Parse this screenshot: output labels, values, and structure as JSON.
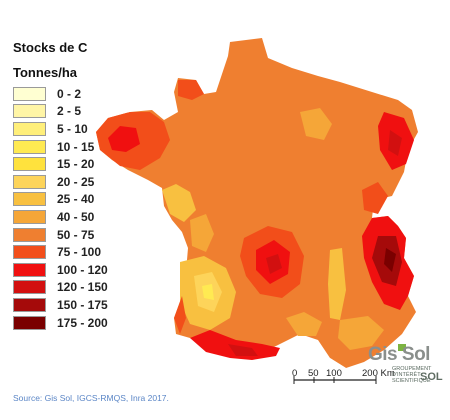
{
  "legend": {
    "title": "Stocks de C",
    "unit": "Tonnes/ha",
    "classes": [
      {
        "label": "0 - 2",
        "color": "#ffffd2"
      },
      {
        "label": "2 - 5",
        "color": "#fff5a6"
      },
      {
        "label": "5 - 10",
        "color": "#ffef7a"
      },
      {
        "label": "10 - 15",
        "color": "#ffea52"
      },
      {
        "label": "15 - 20",
        "color": "#ffe23d"
      },
      {
        "label": "20 - 25",
        "color": "#fdd45a"
      },
      {
        "label": "25 - 40",
        "color": "#f8c040"
      },
      {
        "label": "40 - 50",
        "color": "#f5a638"
      },
      {
        "label": "50 - 75",
        "color": "#ef7f30"
      },
      {
        "label": "75 - 100",
        "color": "#f24e1a"
      },
      {
        "label": "100 - 120",
        "color": "#f01010"
      },
      {
        "label": "120 - 150",
        "color": "#d21010"
      },
      {
        "label": "150 - 175",
        "color": "#a50a0a"
      },
      {
        "label": "175 - 200",
        "color": "#7a0000"
      }
    ]
  },
  "scalebar": {
    "labels": [
      "0",
      "50",
      "100",
      "200 Km"
    ]
  },
  "logo": {
    "name": "Gis Sol",
    "tagline": "GROUPEMENT D'INTÉRÊT SCIENTIFIQUE",
    "word": "SOL"
  },
  "source": "Source: Gis Sol, IGCS-RMQS, Inra 2017."
}
